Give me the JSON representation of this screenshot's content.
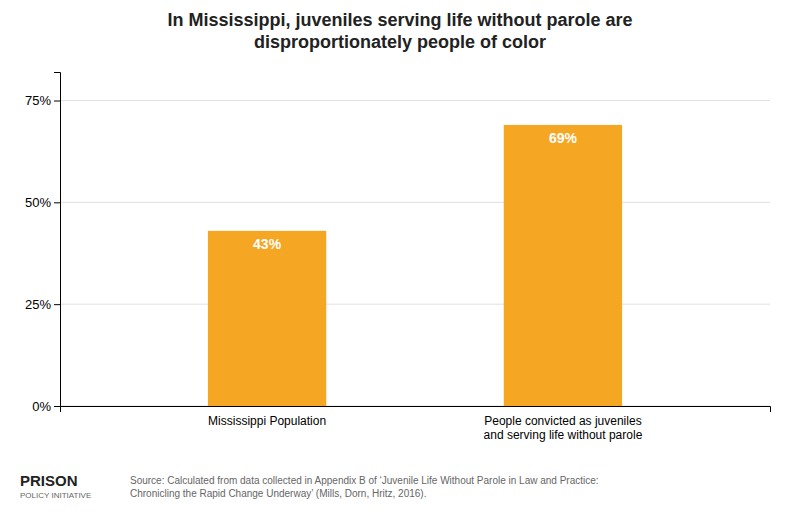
{
  "chart_data": {
    "type": "bar",
    "title": "In Mississippi, juveniles serving life without parole are\ndisproportionately people of color",
    "categories": [
      "Mississippi Population",
      "People convicted as juveniles\nand serving life without parole"
    ],
    "values": [
      43,
      69
    ],
    "value_labels": [
      "43%",
      "69%"
    ],
    "data_labels": true,
    "color": "#F5A623",
    "ylim": [
      0,
      82
    ],
    "yticks": [
      {
        "value": 0,
        "label": "0%"
      },
      {
        "value": 25,
        "label": "25%"
      },
      {
        "value": 50,
        "label": "50%"
      },
      {
        "value": 75,
        "label": "75%"
      }
    ],
    "grid": true,
    "annotations": [
      "Source: Calculated from data collected in Appendix B of ‘Juvenile Life Without Parole in Law and Practice:\nChronicling the Rapid Change Underway’ (Mills, Dorn, Hritz, 2016).",
      "PRISON",
      "POLICY INITIATIVE"
    ]
  }
}
